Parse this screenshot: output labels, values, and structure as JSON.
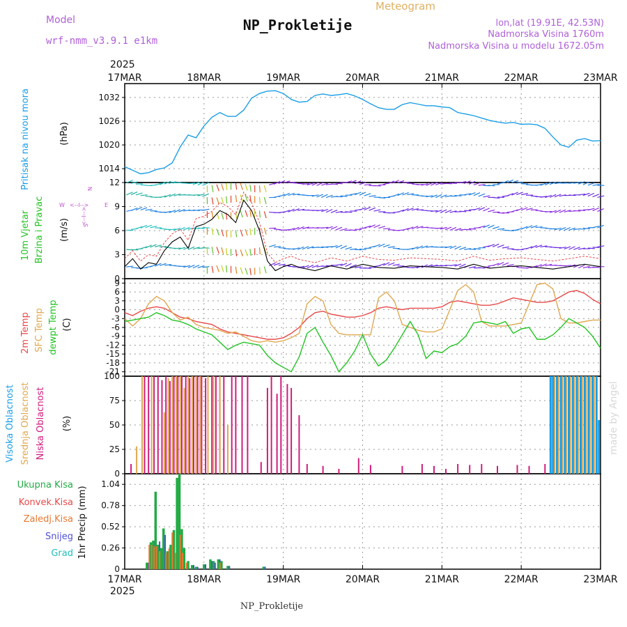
{
  "header": {
    "model_label": "Model",
    "model_name": "wrf-nmm_v3.9.1 e1km",
    "subtitle": "Meteogram",
    "title": "NP_Prokletije",
    "lonlat": "lon,lat (19.91E, 42.53N)",
    "altitude": "Nadmorska Visina 1760m",
    "model_altitude": "Nadmorska Visina u modelu 1672.05m",
    "year": "2025",
    "footer_title": "NP_Prokletije",
    "credit": "made by Angel"
  },
  "colors": {
    "pressure": "#1a9ee6",
    "temp2m": "#e84848",
    "sfctemp": "#e0a850",
    "dewpt": "#22c322",
    "high_cloud": "#1a9ee6",
    "mid_cloud": "#e0a850",
    "low_cloud": "#d01c7c",
    "total_precip": "#22aa44",
    "conv_precip": "#e84848",
    "frozen_precip": "#e87830",
    "snow": "#5050d8",
    "graupel": "#20c0c0",
    "model": "#b060d8",
    "wind_labels": "#c050d0"
  },
  "chart_data": [
    {
      "type": "line",
      "name": "pressure",
      "ylabel_left": "Pritisak na nivou mora",
      "ylabel": "(hPa)",
      "x_ticks": [
        "17MAR",
        "18MAR",
        "19MAR",
        "20MAR",
        "21MAR",
        "22MAR",
        "23MAR"
      ],
      "ylim": [
        1010.5,
        1035.5
      ],
      "yticks": [
        1014,
        1020,
        1026,
        1032
      ],
      "grid": true,
      "x": [
        0,
        0.1,
        0.2,
        0.3,
        0.4,
        0.5,
        0.6,
        0.7,
        0.8,
        0.9,
        1.0,
        1.1,
        1.2,
        1.3,
        1.4,
        1.5,
        1.6,
        1.7,
        1.8,
        1.9,
        2.0,
        2.1,
        2.2,
        2.3,
        2.4,
        2.5,
        2.6,
        2.7,
        2.8,
        2.9,
        3.0,
        3.1,
        3.2,
        3.3,
        3.4,
        3.5,
        3.6,
        3.7,
        3.8,
        3.9,
        4.0,
        4.1,
        4.2,
        4.3,
        4.4,
        4.5,
        4.6,
        4.7,
        4.8,
        4.9,
        5.0,
        5.1,
        5.2,
        5.3,
        5.4,
        5.5,
        5.6,
        5.7,
        5.8,
        5.9,
        6.0
      ],
      "values": [
        1014.5,
        1013.6,
        1012.7,
        1013.0,
        1013.8,
        1014.2,
        1015.5,
        1019.5,
        1022.5,
        1021.8,
        1024.8,
        1027.0,
        1028.2,
        1027.2,
        1027.2,
        1028.8,
        1031.8,
        1033.0,
        1033.6,
        1033.7,
        1033.0,
        1031.5,
        1030.8,
        1031.0,
        1032.5,
        1032.9,
        1032.5,
        1032.7,
        1033.0,
        1032.4,
        1031.5,
        1030.4,
        1029.4,
        1029.0,
        1029.0,
        1030.2,
        1030.7,
        1030.3,
        1029.9,
        1029.9,
        1029.6,
        1029.4,
        1028.2,
        1027.8,
        1027.4,
        1026.8,
        1026.2,
        1025.8,
        1025.5,
        1025.7,
        1025.2,
        1025.3,
        1025.1,
        1024.2,
        1022.0,
        1020.0,
        1019.4,
        1021.2,
        1021.6,
        1021.0,
        1021.1
      ]
    },
    {
      "type": "scatter",
      "name": "wind",
      "ylabel_left_1": "10m Vjetar",
      "ylabel_left_2": "Brzina i Pravac",
      "ylabel": "(m/s)",
      "compass": {
        "north": "N",
        "south": "S",
        "east": "E",
        "west": "W",
        "arrow": "<--I-->"
      },
      "ylim": [
        0,
        12
      ],
      "yticks": [
        0,
        3,
        6,
        9,
        12
      ],
      "grid": true,
      "speed_x": [
        0,
        0.1,
        0.2,
        0.3,
        0.4,
        0.5,
        0.6,
        0.7,
        0.8,
        0.9,
        1.0,
        1.1,
        1.2,
        1.3,
        1.4,
        1.5,
        1.6,
        1.7,
        1.8,
        1.9,
        2.0,
        2.1,
        2.2,
        2.4,
        2.6,
        2.8,
        3.0,
        3.2,
        3.4,
        3.6,
        3.8,
        4.0,
        4.2,
        4.4,
        4.6,
        4.8,
        5.0,
        5.2,
        5.4,
        5.6,
        5.8,
        6.0
      ],
      "speed": [
        1.5,
        2.5,
        1.2,
        2.0,
        1.8,
        3.5,
        4.6,
        5.2,
        3.8,
        6.5,
        6.8,
        7.4,
        8.5,
        8.0,
        7.0,
        9.8,
        8.5,
        6.0,
        2.2,
        1.0,
        1.5,
        1.8,
        1.4,
        1.0,
        1.6,
        1.2,
        1.8,
        1.4,
        1.3,
        1.6,
        1.5,
        1.4,
        1.2,
        1.8,
        1.3,
        1.5,
        1.6,
        1.4,
        1.2,
        1.5,
        1.8,
        1.5
      ],
      "gust_speed": [
        2.5,
        3.5,
        2.2,
        3.0,
        2.8,
        4.5,
        5.6,
        6.2,
        4.8,
        7.5,
        7.8,
        8.4,
        9.5,
        9.0,
        8.0,
        10.8,
        9.5,
        7.0,
        3.2,
        2.0,
        2.5,
        2.8,
        2.4,
        2.0,
        2.6,
        2.2,
        2.8,
        2.4,
        2.3,
        2.6,
        2.5,
        2.4,
        2.2,
        2.8,
        2.3,
        2.5,
        2.6,
        2.4,
        2.2,
        2.5,
        2.8,
        2.5
      ]
    },
    {
      "type": "line",
      "name": "temperature",
      "ylabel_left_1": "2m Temp",
      "ylabel_left_2": "SFC Temp",
      "ylabel_left_3": "dewpt Temp",
      "ylabel": "(C)",
      "ylim": [
        -22.5,
        10.5
      ],
      "yticks": [
        -21,
        -18,
        -15,
        -12,
        -9,
        -6,
        -3,
        0,
        3,
        6,
        9
      ],
      "grid": true,
      "x": [
        0,
        0.1,
        0.2,
        0.3,
        0.4,
        0.5,
        0.6,
        0.7,
        0.8,
        0.9,
        1.0,
        1.1,
        1.2,
        1.3,
        1.4,
        1.5,
        1.6,
        1.7,
        1.8,
        1.9,
        2.0,
        2.1,
        2.2,
        2.3,
        2.4,
        2.5,
        2.6,
        2.7,
        2.8,
        2.9,
        3.0,
        3.1,
        3.2,
        3.3,
        3.4,
        3.5,
        3.6,
        3.7,
        3.8,
        3.9,
        4.0,
        4.1,
        4.2,
        4.3,
        4.4,
        4.5,
        4.6,
        4.7,
        4.8,
        4.9,
        5.0,
        5.1,
        5.2,
        5.3,
        5.4,
        5.5,
        5.6,
        5.7,
        5.8,
        5.9,
        6.0
      ],
      "series": [
        {
          "name": "2m Temp",
          "values": [
            -1.0,
            -2.0,
            -0.5,
            0.5,
            1.0,
            0.5,
            -1.0,
            -2.5,
            -3.0,
            -4.0,
            -4.5,
            -5.0,
            -6.5,
            -7.5,
            -8.0,
            -8.5,
            -9.0,
            -9.5,
            -10.0,
            -10.0,
            -9.5,
            -8.0,
            -6.0,
            -3.0,
            -1.0,
            -0.5,
            -1.5,
            -2.0,
            -2.5,
            -2.5,
            -2.0,
            -1.0,
            0.5,
            1.0,
            0.5,
            0.0,
            0.5,
            0.5,
            0.5,
            0.5,
            1.0,
            2.5,
            3.0,
            2.5,
            2.0,
            1.5,
            1.5,
            2.0,
            3.0,
            4.0,
            3.5,
            3.0,
            2.5,
            2.5,
            3.0,
            4.5,
            6.0,
            6.5,
            5.5,
            3.5,
            2.0
          ]
        },
        {
          "name": "SFC Temp",
          "values": [
            -3.0,
            -5.5,
            -3.0,
            2.0,
            4.5,
            3.0,
            -1.0,
            -3.5,
            -2.5,
            -5.0,
            -6.0,
            -6.5,
            -7.0,
            -8.0,
            -7.5,
            -9.0,
            -10.5,
            -11.0,
            -10.5,
            -11.0,
            -10.5,
            -9.5,
            -8.0,
            2.0,
            4.5,
            3.0,
            -5.0,
            -8.0,
            -8.5,
            -8.5,
            -8.5,
            -8.5,
            4.0,
            6.0,
            3.0,
            -5.0,
            -6.0,
            -7.0,
            -7.5,
            -7.5,
            -6.5,
            0.0,
            6.5,
            8.5,
            6.0,
            -4.0,
            -5.5,
            -5.5,
            -5.5,
            -5.0,
            -4.5,
            2.0,
            8.5,
            9.0,
            7.0,
            -3.0,
            -4.5,
            -4.5,
            -4.0,
            -3.5,
            -3.5
          ]
        },
        {
          "name": "dewpt Temp",
          "values": [
            -4.0,
            -3.5,
            -3.0,
            -2.5,
            -1.0,
            -2.0,
            -3.5,
            -4.0,
            -5.0,
            -6.5,
            -7.5,
            -8.5,
            -11.0,
            -13.5,
            -12.0,
            -11.0,
            -11.5,
            -12.0,
            -15.5,
            -18.0,
            -19.5,
            -21.0,
            -16.0,
            -8.0,
            -6.0,
            -11.0,
            -15.5,
            -21.0,
            -18.0,
            -14.0,
            -8.5,
            -15.0,
            -19.0,
            -17.0,
            -13.0,
            -8.5,
            -4.0,
            -8.5,
            -16.5,
            -14.0,
            -14.5,
            -12.5,
            -11.5,
            -9.0,
            -4.5,
            -4.0,
            -4.5,
            -5.0,
            -4.0,
            -8.0,
            -6.5,
            -6.0,
            -10.0,
            -10.0,
            -8.5,
            -6.0,
            -3.0,
            -4.5,
            -6.0,
            -9.0,
            -13.0
          ]
        }
      ]
    },
    {
      "type": "bar",
      "name": "clouds",
      "ylabel_left_1": "Visoka Oblacnost",
      "ylabel_left_2": "Srednja Oblacnost",
      "ylabel_left_3": "Niska Oblacnost",
      "ylabel": "(%)",
      "ylim": [
        0,
        100
      ],
      "yticks": [
        0,
        25,
        50,
        75,
        100
      ],
      "grid": true,
      "low_x": [
        0.08,
        0.25,
        0.3,
        0.37,
        0.42,
        0.47,
        0.52,
        0.57,
        0.62,
        0.67,
        0.72,
        0.77,
        0.82,
        0.87,
        0.92,
        0.97,
        1.02,
        1.1,
        1.15,
        1.2,
        1.25,
        1.35,
        1.4,
        1.48,
        1.55,
        1.72,
        1.8,
        1.85,
        1.92,
        1.97,
        2.05,
        2.1,
        2.2,
        2.3,
        2.5,
        2.7,
        2.95,
        3.1,
        3.5,
        3.75,
        3.9,
        4.05,
        4.2,
        4.35,
        4.5,
        4.7,
        4.95,
        5.1,
        5.3,
        5.6
      ],
      "low_values": [
        10,
        100,
        100,
        100,
        100,
        96,
        100,
        95,
        100,
        100,
        100,
        100,
        98,
        100,
        100,
        100,
        98,
        100,
        100,
        100,
        100,
        100,
        100,
        100,
        100,
        12,
        88,
        100,
        82,
        100,
        92,
        88,
        60,
        10,
        8,
        5,
        16,
        9,
        8,
        10,
        8,
        5,
        10,
        9,
        10,
        8,
        9,
        8,
        10,
        5
      ],
      "mid_x": [
        0.15,
        0.22,
        0.34,
        0.5,
        0.55,
        0.6,
        0.65,
        0.7,
        0.75,
        0.8,
        0.85,
        0.9,
        0.95,
        1.05,
        1.12,
        1.2,
        1.3,
        5.42,
        5.47,
        5.52,
        5.57,
        5.62,
        5.67,
        5.72,
        5.77,
        5.82,
        5.87,
        5.92
      ],
      "mid_values": [
        28,
        100,
        100,
        63,
        98,
        100,
        100,
        100,
        88,
        100,
        100,
        100,
        100,
        100,
        100,
        100,
        50,
        100,
        100,
        100,
        100,
        100,
        100,
        100,
        100,
        100,
        100,
        100
      ],
      "high_x": [
        5.37,
        5.4,
        5.45,
        5.5,
        5.55,
        5.6,
        5.65,
        5.7,
        5.75,
        5.8,
        5.85,
        5.9,
        5.95,
        5.98
      ],
      "high_values": [
        100,
        100,
        100,
        100,
        100,
        100,
        100,
        100,
        100,
        100,
        100,
        100,
        100,
        55
      ]
    },
    {
      "type": "bar",
      "name": "precipitation",
      "legend": [
        "Ukupna Kisa",
        "Konvek.Kisa",
        "Zaledj.Kisa",
        "Snijeg",
        "Grad"
      ],
      "ylabel": "1hr Precip (mm)",
      "ylim": [
        0,
        1.17
      ],
      "yticks": [
        0,
        0.26,
        0.52,
        0.78,
        1.04
      ],
      "grid": true,
      "x": [
        0.28,
        0.33,
        0.36,
        0.39,
        0.42,
        0.46,
        0.49,
        0.54,
        0.58,
        0.62,
        0.66,
        0.69,
        0.72,
        0.75,
        0.8,
        0.85,
        0.9,
        1.0,
        1.08,
        1.12,
        1.18,
        1.22,
        1.3,
        1.75
      ],
      "total": [
        0.08,
        0.33,
        0.35,
        0.95,
        0.3,
        0.26,
        0.5,
        0.22,
        0.3,
        0.48,
        1.12,
        1.17,
        0.49,
        0.26,
        0.1,
        0.05,
        0.03,
        0.06,
        0.12,
        0.1,
        0.12,
        0.1,
        0.04,
        0.03
      ],
      "frozen": [
        0.0,
        0.3,
        0.3,
        0.28,
        0.28,
        0.22,
        0.0,
        0.2,
        0.25,
        0.45,
        0.2,
        0.0,
        0.42,
        0.2,
        0.08,
        0.0,
        0.0,
        0.0,
        0.0,
        0.0,
        0.0,
        0.08,
        0.0,
        0.0
      ],
      "snow": [
        0.08,
        0.0,
        0.33,
        0.0,
        0.34,
        0.0,
        0.42,
        0.0,
        0.0,
        0.0,
        0.0,
        0.36,
        0.0,
        0.0,
        0.0,
        0.05,
        0.03,
        0.06,
        0.1,
        0.08,
        0.12,
        0.0,
        0.04,
        0.03
      ]
    }
  ]
}
